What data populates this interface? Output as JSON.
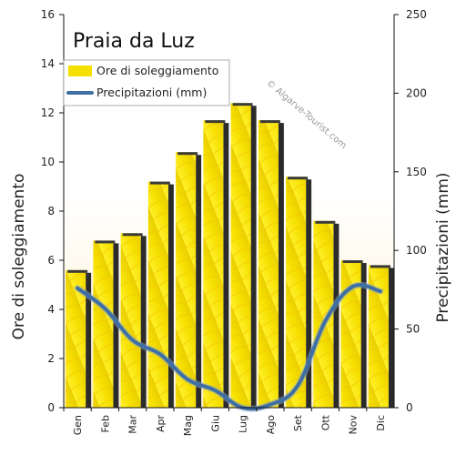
{
  "chart_data": {
    "type": "bar",
    "title": "Praia da Luz",
    "categories": [
      "Gen",
      "Feb",
      "Mar",
      "Apr",
      "Mag",
      "Giu",
      "Lug",
      "Ago",
      "Set",
      "Ott",
      "Nov",
      "Dic"
    ],
    "series": [
      {
        "name": "Ore di soleggiamento",
        "type": "bar",
        "axis": "left",
        "color": "#f5e000",
        "values": [
          5.6,
          6.8,
          7.1,
          9.2,
          10.4,
          11.7,
          12.4,
          11.7,
          9.4,
          7.6,
          6.0,
          5.8
        ]
      },
      {
        "name": "Precipitazioni (mm)",
        "type": "line",
        "axis": "right",
        "color": "#3f6fa5",
        "values": [
          76,
          63,
          43,
          34,
          18,
          11,
          0,
          2,
          14,
          55,
          77,
          74
        ]
      }
    ],
    "ylabel": "Ore di soleggiamento",
    "y2label": "Precipitazioni (mm)",
    "ylim": [
      0,
      16
    ],
    "y2lim": [
      0,
      250
    ],
    "yticks": [
      "0",
      "2",
      "4",
      "6",
      "8",
      "10",
      "12",
      "14",
      "16"
    ],
    "y2ticks": [
      "0",
      "50",
      "100",
      "150",
      "200",
      "250"
    ],
    "legend_position": "top-left",
    "watermark": "© Algarve-Tourist.com",
    "grid": false
  }
}
